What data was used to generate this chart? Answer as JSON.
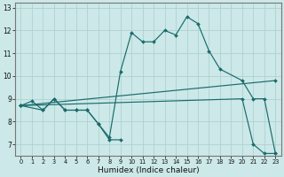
{
  "xlabel": "Humidex (Indice chaleur)",
  "bg_color": "#cce8e8",
  "grid_color": "#aacece",
  "line_color": "#1a6b6b",
  "xlim": [
    -0.5,
    23.5
  ],
  "ylim": [
    6.5,
    13.2
  ],
  "xticks": [
    0,
    1,
    2,
    3,
    4,
    5,
    6,
    7,
    8,
    9,
    10,
    11,
    12,
    13,
    14,
    15,
    16,
    17,
    18,
    19,
    20,
    21,
    22,
    23
  ],
  "yticks": [
    7,
    8,
    9,
    10,
    11,
    12,
    13
  ],
  "lines": [
    {
      "x": [
        0,
        2,
        3,
        4,
        5,
        6,
        7,
        8,
        9,
        10,
        11,
        12,
        13,
        14,
        15,
        16,
        17,
        18,
        20,
        21,
        22,
        23
      ],
      "y": [
        8.7,
        8.5,
        9.0,
        8.5,
        8.5,
        8.5,
        7.9,
        7.3,
        10.2,
        11.9,
        11.5,
        11.5,
        12.0,
        11.8,
        12.6,
        12.3,
        11.1,
        10.3,
        9.8,
        9.0,
        9.0,
        6.6
      ]
    },
    {
      "x": [
        0,
        1,
        2,
        3,
        4,
        5,
        6,
        7,
        8,
        9
      ],
      "y": [
        8.7,
        8.9,
        8.5,
        9.0,
        8.5,
        8.5,
        8.5,
        7.9,
        7.2,
        7.2
      ]
    },
    {
      "x": [
        0,
        23
      ],
      "y": [
        8.7,
        9.8
      ]
    },
    {
      "x": [
        0,
        20,
        21,
        22,
        23
      ],
      "y": [
        8.7,
        9.0,
        7.0,
        6.6,
        6.6
      ]
    }
  ]
}
